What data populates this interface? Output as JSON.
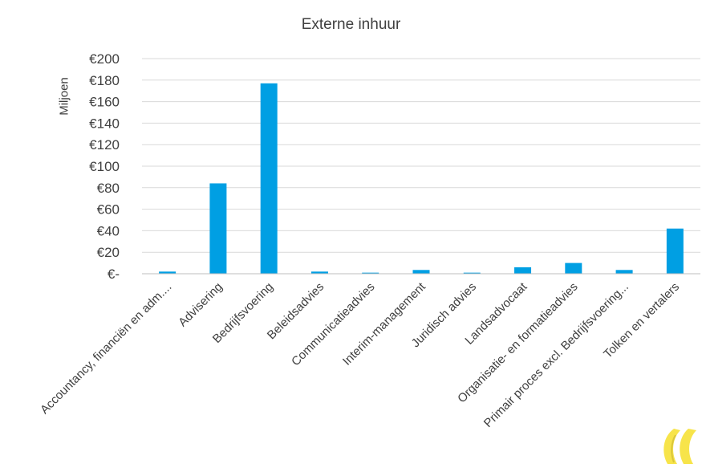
{
  "chart_data": {
    "type": "bar",
    "title": "Externe inhuur",
    "xlabel": "",
    "ylabel": "Miljoen",
    "categories": [
      "Accountancy, financiën en adm....",
      "Advisering",
      "Bedrijfsvoering",
      "Beleidsadvies",
      "Communicatieadvies",
      "Interim-management",
      "Juridisch advies",
      "Landsadvocaat",
      "Organisatie- en formatieadvies",
      "Primair proces excl. Bedrijfsvoering...",
      "Tolken en vertalers"
    ],
    "values": [
      2,
      84,
      177,
      2,
      1,
      3.5,
      1,
      6,
      10,
      3.5,
      42
    ],
    "ylim": [
      0,
      200
    ],
    "yticks": [
      0,
      20,
      40,
      60,
      80,
      100,
      120,
      140,
      160,
      180,
      200
    ],
    "ytick_labels": [
      "€-",
      "€20",
      "€40",
      "€60",
      "€80",
      "€100",
      "€120",
      "€140",
      "€160",
      "€180",
      "€200"
    ],
    "grid": true,
    "bar_color": "#009fe3"
  },
  "colors": {
    "text": "#404040",
    "grid": "#d9d9d9",
    "logo_yellow": "#f7e44a"
  }
}
